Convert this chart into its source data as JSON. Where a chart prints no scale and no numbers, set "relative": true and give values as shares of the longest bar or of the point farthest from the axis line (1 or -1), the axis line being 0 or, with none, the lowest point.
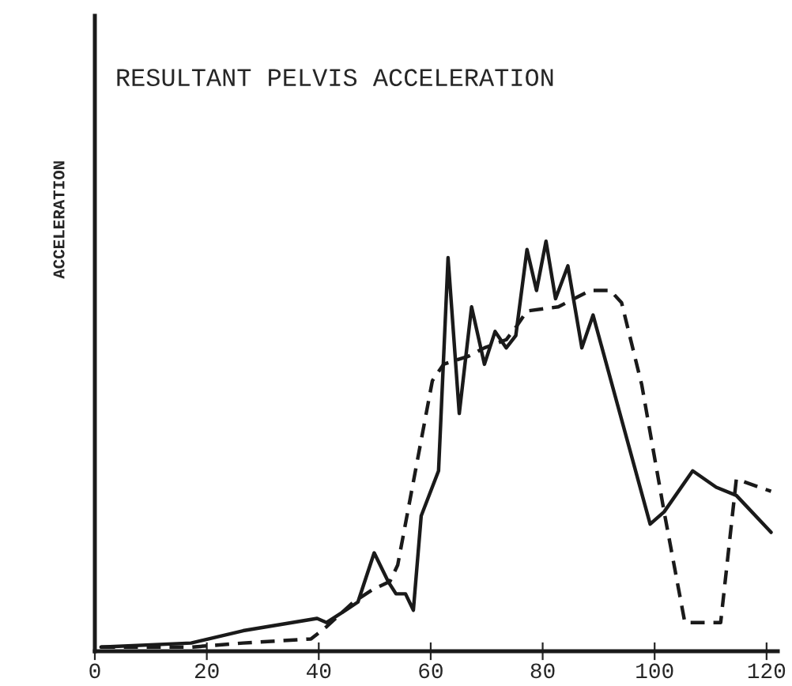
{
  "chart_data": {
    "type": "line",
    "title": "RESULTANT PELVIS ACCELERATION",
    "ylabel": "ACCELERATION",
    "relative": true,
    "xlim": [
      0,
      122
    ],
    "xticks": [
      0,
      20,
      40,
      60,
      80,
      100,
      120
    ],
    "grid": false,
    "legend": false,
    "marker": "none",
    "series": [
      {
        "color": "#1a1a1a",
        "line_style": "solid",
        "x": [
          1.1,
          17.2,
          26.5,
          39.7,
          41.4,
          44.8,
          47.0,
          49.9,
          52.4,
          53.8,
          55.5,
          56.9,
          58.3,
          61.4,
          63.1,
          65.1,
          67.3,
          69.6,
          71.5,
          73.5,
          75.2,
          77.2,
          78.9,
          80.6,
          82.3,
          84.5,
          87.0,
          89.0,
          99.2,
          101.7,
          106.8,
          111.0,
          114.6,
          120.8
        ],
        "values": [
          0.01,
          0.02,
          0.05,
          0.08,
          0.07,
          0.1,
          0.12,
          0.24,
          0.17,
          0.14,
          0.14,
          0.1,
          0.33,
          0.44,
          0.96,
          0.58,
          0.84,
          0.7,
          0.78,
          0.74,
          0.77,
          0.98,
          0.88,
          1.0,
          0.86,
          0.94,
          0.74,
          0.82,
          0.31,
          0.34,
          0.44,
          0.4,
          0.38,
          0.29
        ]
      },
      {
        "color": "#1a1a1a",
        "line_style": "dashed",
        "x": [
          1.1,
          17.2,
          26.5,
          38.6,
          41.4,
          46.2,
          49.6,
          52.7,
          54.1,
          60.3,
          62.3,
          66.8,
          69.6,
          73.5,
          75.2,
          77.2,
          82.8,
          85.6,
          88.5,
          92.1,
          94.1,
          97.7,
          101.7,
          105.4,
          111.8,
          114.6,
          120.8
        ],
        "values": [
          0.01,
          0.01,
          0.02,
          0.03,
          0.06,
          0.12,
          0.15,
          0.17,
          0.21,
          0.66,
          0.7,
          0.72,
          0.74,
          0.76,
          0.79,
          0.83,
          0.84,
          0.86,
          0.88,
          0.88,
          0.85,
          0.65,
          0.34,
          0.07,
          0.07,
          0.42,
          0.39
        ]
      }
    ]
  }
}
